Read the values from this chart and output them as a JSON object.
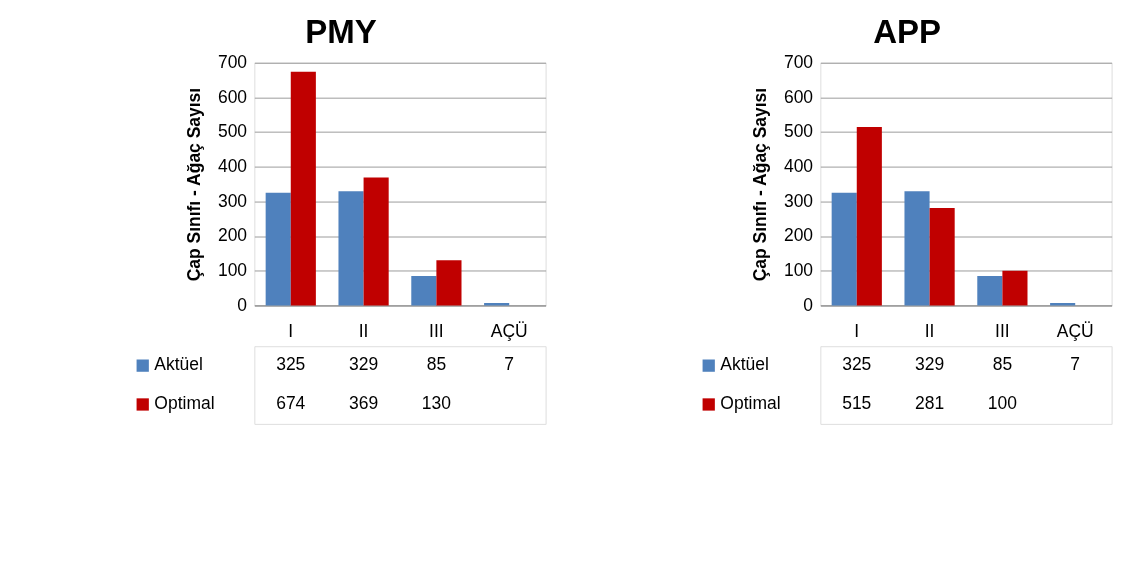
{
  "chart_data": [
    {
      "type": "bar",
      "title": "PMY",
      "ylabel": "Çap Sınıfı - Ağaç Sayısı",
      "categories": [
        "I",
        "II",
        "III",
        "AÇÜ"
      ],
      "series": [
        {
          "name": "Aktüel",
          "color": "#4f81bd",
          "values": [
            325,
            329,
            85,
            7
          ]
        },
        {
          "name": "Optimal",
          "color": "#c00000",
          "values": [
            674,
            369,
            130,
            null
          ]
        }
      ],
      "ylim": [
        0,
        700
      ],
      "yticks": [
        0,
        100,
        200,
        300,
        400,
        500,
        600,
        700
      ],
      "grid": "y",
      "data_labels": true,
      "legend": "bottom"
    },
    {
      "type": "bar",
      "title": "APP",
      "ylabel": "Çap Sınıfı - Ağaç Sayısı",
      "categories": [
        "I",
        "II",
        "III",
        "AÇÜ"
      ],
      "series": [
        {
          "name": "Aktüel",
          "color": "#4f81bd",
          "values": [
            325,
            329,
            85,
            7
          ]
        },
        {
          "name": "Optimal",
          "color": "#c00000",
          "values": [
            515,
            281,
            100,
            null
          ]
        }
      ],
      "ylim": [
        0,
        700
      ],
      "yticks": [
        0,
        100,
        200,
        300,
        400,
        500,
        600,
        700
      ],
      "grid": "y",
      "data_labels": true,
      "legend": "bottom"
    }
  ]
}
